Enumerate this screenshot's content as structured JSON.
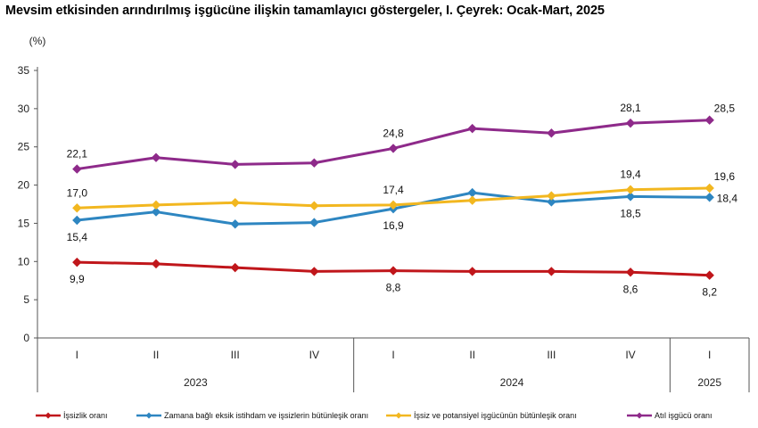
{
  "title": "Mevsim etkisinden arındırılmış işgücüne ilişkin tamamlayıcı göstergeler, I. Çeyrek: Ocak-Mart, 2025",
  "chart_data": {
    "type": "line",
    "ylabel": "(%)",
    "ylim": [
      0,
      35
    ],
    "yticks": [
      "0",
      "5",
      "10",
      "15",
      "20",
      "25",
      "30",
      "35"
    ],
    "categories": [
      "I",
      "II",
      "III",
      "IV",
      "I",
      "II",
      "III",
      "IV",
      "I"
    ],
    "years": [
      {
        "label": "2023",
        "span": [
          0,
          3
        ]
      },
      {
        "label": "2024",
        "span": [
          4,
          7
        ]
      },
      {
        "label": "2025",
        "span": [
          8,
          8
        ]
      }
    ],
    "grid": false,
    "legend_position": "bottom",
    "series": [
      {
        "name": "İşsizlik oranı",
        "color": "#c0161b",
        "values": [
          9.9,
          9.7,
          9.2,
          8.7,
          8.8,
          8.7,
          8.7,
          8.6,
          8.2
        ],
        "labels": [
          {
            "i": 0,
            "text": "9,9",
            "pos": "below"
          },
          {
            "i": 4,
            "text": "8,8",
            "pos": "below"
          },
          {
            "i": 7,
            "text": "8,6",
            "pos": "below"
          },
          {
            "i": 8,
            "text": "8,2",
            "pos": "below"
          }
        ]
      },
      {
        "name": "Zamana bağlı eksik istihdam ve işsizlerin bütünleşik oranı",
        "color": "#2e86c1",
        "values": [
          15.4,
          16.5,
          14.9,
          15.1,
          16.9,
          19.0,
          17.8,
          18.5,
          18.4
        ],
        "labels": [
          {
            "i": 0,
            "text": "15,4",
            "pos": "below"
          },
          {
            "i": 4,
            "text": "16,9",
            "pos": "below"
          },
          {
            "i": 7,
            "text": "18,5",
            "pos": "below"
          },
          {
            "i": 8,
            "text": "18,4",
            "pos": "right"
          }
        ]
      },
      {
        "name": "İşsiz ve potansiyel işgücünün bütünleşik oranı",
        "color": "#f2b720",
        "values": [
          17.0,
          17.4,
          17.7,
          17.3,
          17.4,
          18.0,
          18.6,
          19.4,
          19.6
        ],
        "labels": [
          {
            "i": 0,
            "text": "17,0",
            "pos": "above"
          },
          {
            "i": 4,
            "text": "17,4",
            "pos": "above"
          },
          {
            "i": 7,
            "text": "19,4",
            "pos": "above"
          },
          {
            "i": 8,
            "text": "19,6",
            "pos": "aboveRight"
          }
        ]
      },
      {
        "name": "Atıl işgücü oranı",
        "color": "#8e2a8a",
        "values": [
          22.1,
          23.6,
          22.7,
          22.9,
          24.8,
          27.4,
          26.8,
          28.1,
          28.5
        ],
        "labels": [
          {
            "i": 0,
            "text": "22,1",
            "pos": "above"
          },
          {
            "i": 4,
            "text": "24,8",
            "pos": "above"
          },
          {
            "i": 7,
            "text": "28,1",
            "pos": "above"
          },
          {
            "i": 8,
            "text": "28,5",
            "pos": "aboveRight"
          }
        ]
      }
    ]
  }
}
